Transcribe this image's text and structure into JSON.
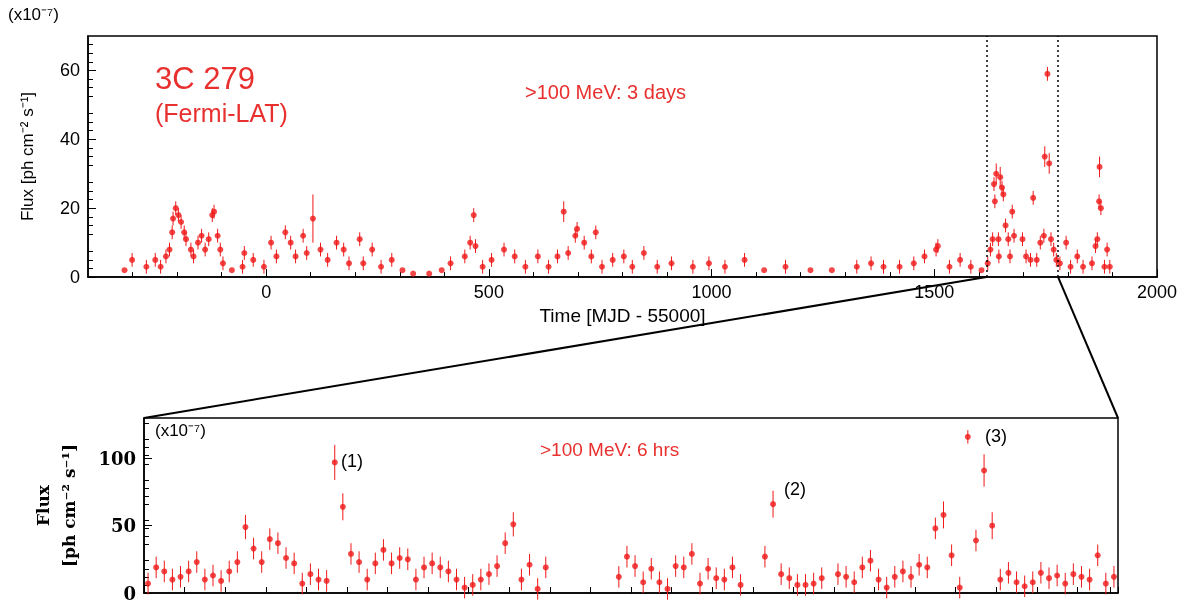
{
  "chart_data": [
    {
      "type": "scatter",
      "title": "3C 279",
      "subtitle": "(Fermi-LAT)",
      "xlabel": "Time [MJD - 55000]",
      "ylabel": "Flux [ph cm⁻² s⁻¹]",
      "annotations": [
        ">100 MeV: 3 days",
        "(x10⁻⁷)"
      ],
      "color": "#f01818",
      "marker": "circle",
      "x": [
        -318,
        -301,
        -269,
        -249,
        -237,
        -225,
        -217,
        -211,
        -209,
        -203,
        -197,
        -191,
        -184,
        -180,
        -169,
        -163,
        -153,
        -145,
        -137,
        -129,
        -121,
        -117,
        -109,
        -103,
        -97,
        -77,
        -53,
        -49,
        -29,
        -5,
        11,
        23,
        43,
        55,
        66,
        83,
        91,
        105,
        122,
        138,
        158,
        174,
        186,
        210,
        218,
        238,
        258,
        282,
        306,
        330,
        366,
        394,
        414,
        446,
        458,
        466,
        470,
        486,
        506,
        534,
        558,
        582,
        610,
        634,
        654,
        668,
        678,
        694,
        698,
        714,
        730,
        740,
        754,
        778,
        803,
        822,
        848,
        878,
        910,
        958,
        994,
        1030,
        1074,
        1118,
        1166,
        1222,
        1270,
        1326,
        1358,
        1386,
        1422,
        1454,
        1478,
        1504,
        1508,
        1534,
        1558,
        1582,
        1606,
        1620,
        1626,
        1631,
        1634,
        1636,
        1639,
        1644,
        1645,
        1648,
        1652,
        1655,
        1660,
        1666,
        1670,
        1675,
        1679,
        1698,
        1706,
        1716,
        1722,
        1730,
        1738,
        1746,
        1748,
        1754,
        1758,
        1762,
        1768,
        1774,
        1782,
        1796,
        1806,
        1821,
        1834,
        1854,
        1862,
        1866,
        1870,
        1871,
        1874,
        1882,
        1888,
        1894
      ],
      "values": [
        2,
        5,
        3,
        5,
        3,
        6,
        8,
        13,
        17,
        20,
        18,
        16,
        13,
        11,
        8,
        6,
        10,
        12,
        8,
        11,
        18,
        19,
        12,
        8,
        4,
        2,
        3,
        7,
        5,
        3,
        10,
        6,
        13,
        10,
        6,
        12,
        7,
        17,
        8,
        5,
        10,
        8,
        4,
        11,
        4,
        8,
        3,
        5,
        2,
        1,
        1,
        2,
        4,
        6,
        10,
        18,
        9,
        3,
        5,
        8,
        6,
        3,
        6,
        3,
        6,
        19,
        7,
        12,
        14,
        10,
        6,
        13,
        3,
        5,
        6,
        3,
        7,
        3,
        4,
        3,
        4,
        3,
        5,
        2,
        3,
        2,
        2,
        3,
        4,
        3,
        3,
        4,
        6,
        8,
        9,
        3,
        5,
        3,
        2,
        4,
        8,
        11,
        27,
        22,
        30,
        11,
        6,
        29,
        26,
        24,
        15,
        11,
        6,
        19,
        12,
        11,
        6,
        5,
        23,
        5,
        10,
        12,
        35,
        59,
        33,
        11,
        8,
        5,
        4,
        10,
        3,
        6,
        3,
        4,
        9,
        11,
        22,
        32,
        20,
        3,
        8,
        3
      ],
      "errors": [
        null,
        2,
        2,
        2,
        2,
        2,
        2,
        2,
        2,
        2,
        2,
        2,
        2,
        2,
        2,
        2,
        2,
        2,
        2,
        2,
        2,
        2,
        2,
        2,
        2,
        null,
        2,
        2,
        2,
        2,
        2,
        2,
        2,
        2,
        2,
        2,
        2,
        7,
        2,
        2,
        2,
        2,
        2,
        2,
        2,
        2,
        2,
        2,
        null,
        null,
        null,
        null,
        2,
        2,
        2,
        2,
        2,
        2,
        2,
        2,
        2,
        2,
        2,
        2,
        2,
        3,
        2,
        2,
        2,
        2,
        2,
        2,
        2,
        2,
        2,
        2,
        2,
        2,
        2,
        2,
        2,
        2,
        2,
        null,
        2,
        null,
        null,
        2,
        2,
        2,
        2,
        2,
        2,
        2,
        2,
        2,
        2,
        2,
        null,
        2,
        2,
        2,
        2,
        2,
        3,
        2,
        2,
        3,
        2,
        2,
        2,
        2,
        2,
        2,
        2,
        2,
        2,
        2,
        2,
        2,
        2,
        2,
        3,
        2,
        3,
        2,
        2,
        2,
        2,
        2,
        2,
        2,
        2,
        2,
        2,
        2,
        2,
        3,
        2,
        2,
        2,
        2
      ],
      "xlim": [
        -400,
        2000
      ],
      "xticks": [
        0,
        500,
        1000,
        1500,
        2000
      ],
      "ylim": [
        0,
        70
      ],
      "yticks": [
        0,
        20,
        40,
        60
      ],
      "ref_lines": [
        {
          "axis": "x",
          "value": 1617,
          "color": "#000000",
          "line_style": "dotted"
        },
        {
          "axis": "x",
          "value": 1778,
          "color": "#000000",
          "line_style": "dotted"
        }
      ]
    },
    {
      "type": "scatter",
      "ylabel": "Flux [ph cm⁻² s⁻¹]",
      "annotations": [
        "(x10⁻⁷)",
        ">100 MeV: 6 hrs",
        "(1)",
        "(2)",
        "(3)"
      ],
      "color": "#f01818",
      "marker": "circle",
      "tick_labels": "y",
      "categories": [
        null,
        null,
        null,
        null,
        null,
        null,
        null,
        null,
        null,
        null,
        null,
        null,
        null,
        null,
        null,
        null,
        null,
        null,
        null,
        null,
        null,
        null,
        null,
        null,
        null,
        null,
        null,
        null,
        null,
        null,
        null,
        null,
        null,
        null,
        null,
        null,
        null,
        null,
        null,
        null,
        null,
        null,
        null,
        null,
        null,
        null,
        null,
        null,
        null,
        null,
        null,
        null,
        null,
        null,
        null,
        null,
        null,
        null,
        null,
        null,
        null,
        null,
        null,
        null,
        null,
        null,
        null,
        null,
        null,
        null,
        null,
        null,
        null,
        null,
        null,
        null,
        null,
        null,
        null,
        null,
        null,
        null,
        null,
        null,
        null,
        null,
        null,
        null,
        null,
        null,
        null,
        null,
        null,
        null,
        null,
        null,
        null,
        null,
        null,
        null,
        null,
        null,
        null,
        null,
        null,
        null,
        null,
        null,
        null,
        null,
        null,
        null,
        null,
        null,
        null,
        null,
        null,
        null,
        null,
        null
      ],
      "values": [
        7,
        19,
        16,
        10,
        12,
        16,
        23,
        10,
        13,
        9,
        16,
        23,
        49,
        33,
        23,
        40,
        37,
        26,
        22,
        7,
        14,
        10,
        9,
        97,
        64,
        29,
        23,
        10,
        22,
        32,
        22,
        26,
        25,
        10,
        19,
        22,
        19,
        16,
        10,
        4,
        6,
        10,
        14,
        20,
        37,
        51,
        10,
        21,
        3,
        19,
        null,
        null,
        null,
        null,
        null,
        null,
        null,
        null,
        12,
        27,
        20,
        8,
        18,
        8,
        3,
        20,
        19,
        29,
        7,
        18,
        11,
        10,
        19,
        6,
        null,
        null,
        27,
        66,
        14,
        11,
        6,
        6,
        7,
        11,
        null,
        14,
        12,
        8,
        19,
        24,
        10,
        4,
        12,
        16,
        12,
        21,
        19,
        48,
        58,
        28,
        4,
        116,
        39,
        91,
        50,
        10,
        15,
        8,
        5,
        8,
        15,
        11,
        13,
        7,
        14,
        12,
        10,
        28,
        7,
        12
      ],
      "errors": [
        8,
        8,
        8,
        8,
        8,
        8,
        8,
        8,
        8,
        8,
        8,
        8,
        9,
        8,
        8,
        8,
        8,
        8,
        8,
        8,
        8,
        8,
        8,
        13,
        10,
        8,
        8,
        8,
        8,
        8,
        8,
        8,
        8,
        8,
        8,
        8,
        8,
        8,
        8,
        8,
        8,
        8,
        8,
        8,
        8,
        9,
        8,
        8,
        8,
        8,
        null,
        null,
        null,
        null,
        null,
        null,
        null,
        null,
        8,
        8,
        8,
        8,
        8,
        8,
        8,
        8,
        8,
        8,
        8,
        8,
        8,
        8,
        8,
        8,
        null,
        null,
        8,
        10,
        8,
        8,
        8,
        8,
        8,
        8,
        null,
        8,
        8,
        8,
        8,
        8,
        8,
        8,
        8,
        8,
        8,
        8,
        8,
        8,
        10,
        8,
        8,
        5,
        8,
        12,
        10,
        8,
        8,
        8,
        8,
        8,
        8,
        8,
        8,
        8,
        8,
        8,
        8,
        8,
        8,
        8
      ],
      "ylim": [
        0,
        130
      ],
      "yticks": [
        0,
        50,
        100
      ]
    }
  ]
}
